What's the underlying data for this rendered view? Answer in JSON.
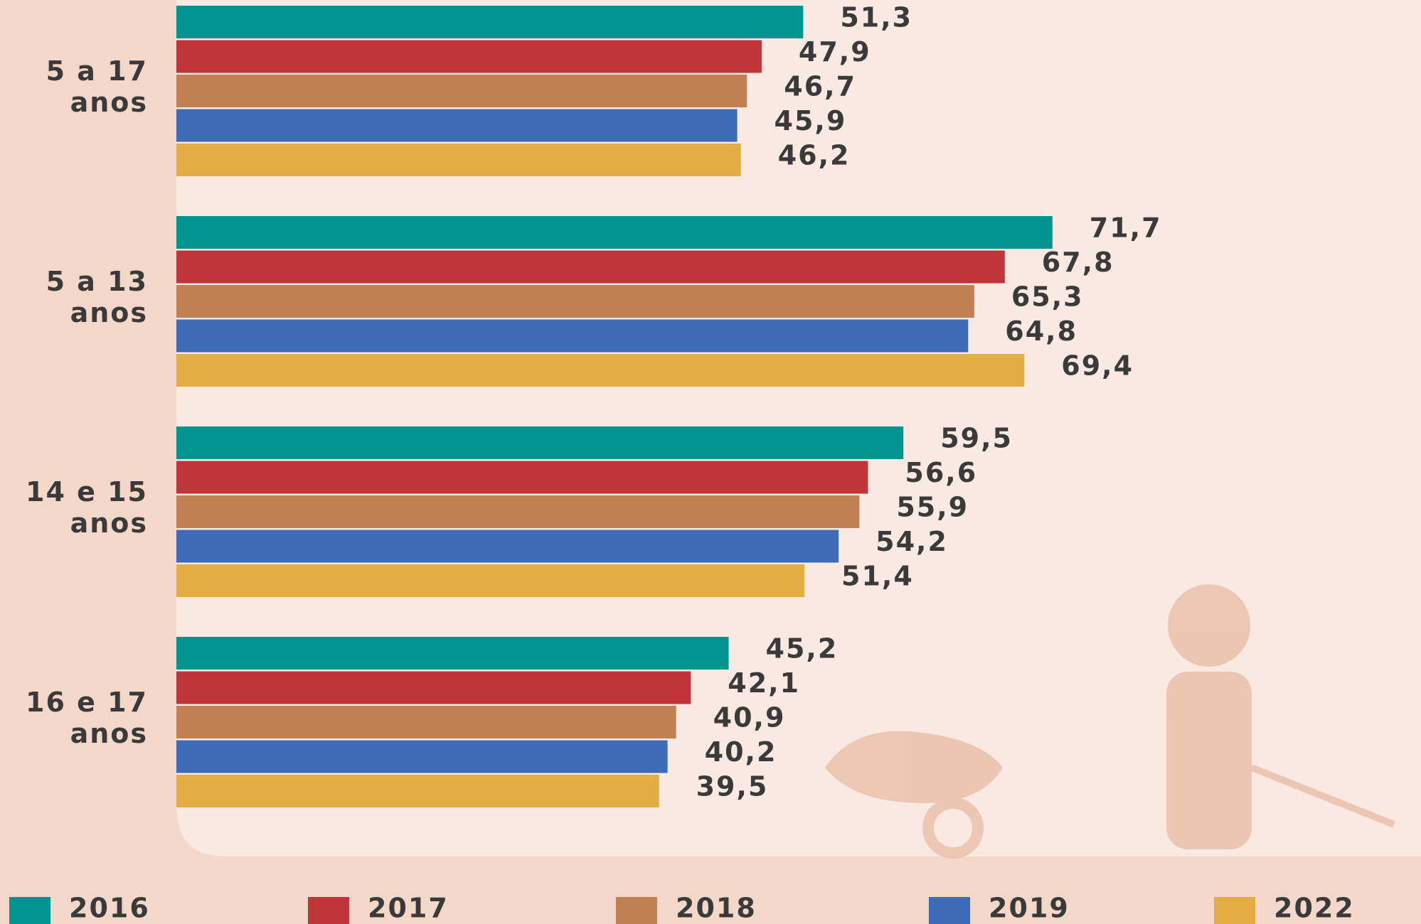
{
  "chart_data": {
    "type": "bar",
    "orientation": "horizontal",
    "categories": [
      "5 a 17 anos",
      "5 a 13 anos",
      "14 e 15 anos",
      "16 e 17 anos"
    ],
    "series": [
      {
        "name": "2016",
        "color": "#009490",
        "values": [
          51.3,
          71.7,
          59.5,
          45.2
        ],
        "value_labels": [
          "51,3",
          "71,7",
          "59,5",
          "45,2"
        ]
      },
      {
        "name": "2017",
        "color": "#c0353a",
        "values": [
          47.9,
          67.8,
          56.6,
          42.1
        ],
        "value_labels": [
          "47,9",
          "67,8",
          "56,6",
          "42,1"
        ]
      },
      {
        "name": "2018",
        "color": "#c08052",
        "values": [
          46.7,
          65.3,
          55.9,
          40.9
        ],
        "value_labels": [
          "46,7",
          "65,3",
          "55,9",
          "40,9"
        ]
      },
      {
        "name": "2019",
        "color": "#3e6bb5",
        "values": [
          45.9,
          64.8,
          54.2,
          40.2
        ],
        "value_labels": [
          "45,9",
          "64,8",
          "54,2",
          "40,2"
        ]
      },
      {
        "name": "2022",
        "color": "#e2ad45",
        "values": [
          46.2,
          69.4,
          51.4,
          39.5
        ],
        "value_labels": [
          "46,2",
          "69,4",
          "51,4",
          "39,5"
        ]
      }
    ],
    "legend": "bottom"
  }
}
